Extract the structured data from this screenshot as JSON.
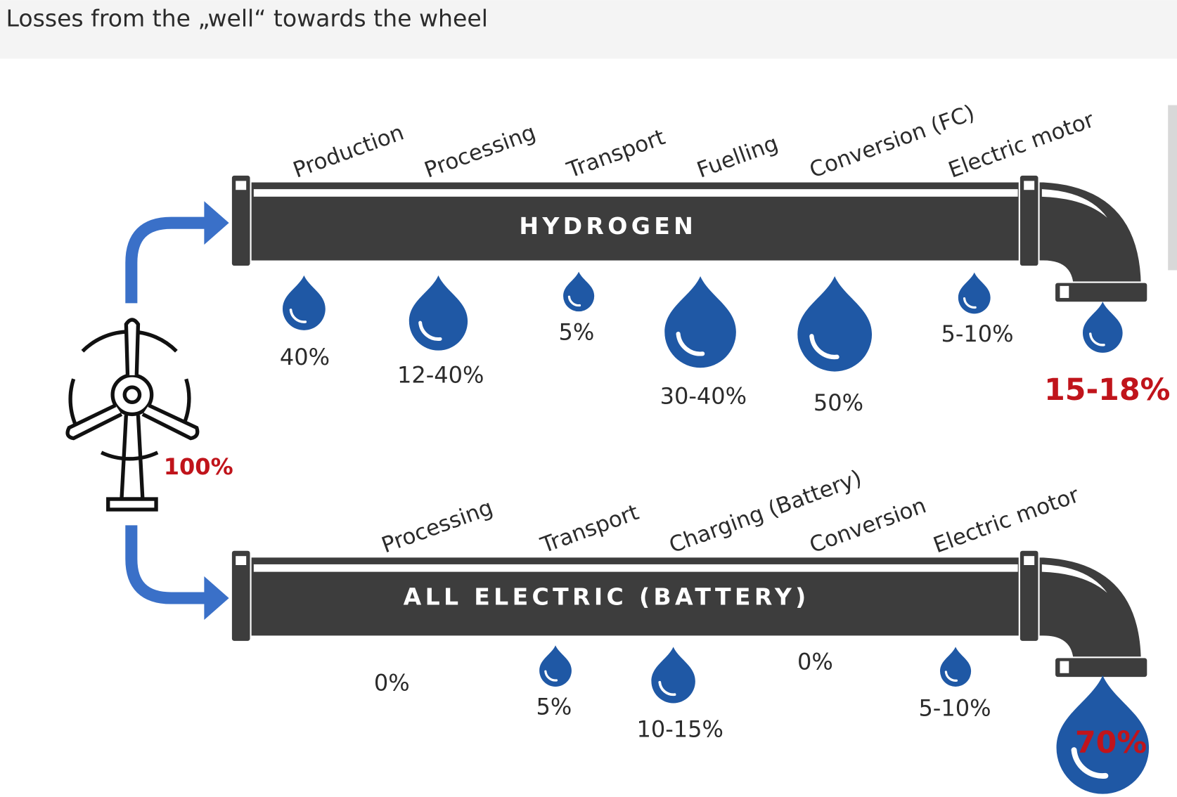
{
  "header": {
    "title": "Losses from the „well“ towards the wheel"
  },
  "source": {
    "value": "100%"
  },
  "colors": {
    "accent_blue": "#1f58a5",
    "arrow_blue": "#3a70c8",
    "highlight_red": "#c0141b",
    "pipe": "#3d3d3d"
  },
  "hydrogen": {
    "name": "HYDROGEN",
    "stages": [
      {
        "label": "Production",
        "loss": "40%"
      },
      {
        "label": "Processing",
        "loss": "12-40%"
      },
      {
        "label": "Transport",
        "loss": "5%"
      },
      {
        "label": "Fuelling",
        "loss": "30-40%"
      },
      {
        "label": "Conversion (FC)",
        "loss": "50%"
      },
      {
        "label": "Electric motor",
        "loss": "5-10%"
      }
    ],
    "result": "15-18%"
  },
  "battery": {
    "name": "ALL ELECTRIC (BATTERY)",
    "stages": [
      {
        "label": "Processing",
        "loss": "0%"
      },
      {
        "label": "Transport",
        "loss": "5%"
      },
      {
        "label": "Charging (Battery)",
        "loss": "10-15%"
      },
      {
        "label": "Conversion",
        "loss": "0%"
      },
      {
        "label": "Electric motor",
        "loss": "5-10%"
      }
    ],
    "result": "70%"
  }
}
